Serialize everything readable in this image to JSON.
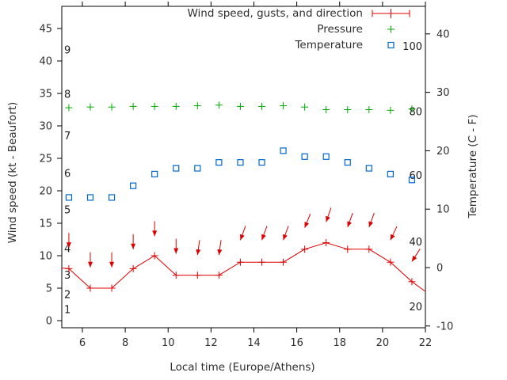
{
  "chart_data": {
    "type": "line",
    "title": "",
    "xlabel": "Local time (Europe/Athens)",
    "ylabel_left": "Wind speed (kt - Beaufort)",
    "ylabel_right": "Temperature (C - F)",
    "grid": false,
    "x_axis": {
      "ticks": [
        6,
        8,
        10,
        12,
        14,
        16,
        18,
        20,
        22
      ],
      "range": [
        5.04,
        22
      ]
    },
    "left_axis": {
      "unit": "kt",
      "ticks": [
        0,
        5,
        10,
        15,
        20,
        25,
        30,
        35,
        40,
        45
      ],
      "range": [
        -1.1,
        48.4
      ]
    },
    "right_axis": {
      "unit": "C",
      "ticks": [
        -10,
        0,
        10,
        20,
        30,
        40
      ],
      "range": [
        -10.3,
        44.7
      ]
    },
    "beaufort_scale_labels": [
      {
        "label": "1",
        "kt": 1.7
      },
      {
        "label": "2",
        "kt": 4.0
      },
      {
        "label": "3",
        "kt": 7.0
      },
      {
        "label": "4",
        "kt": 11.1
      },
      {
        "label": "5",
        "kt": 17.1
      },
      {
        "label": "6",
        "kt": 22.7
      },
      {
        "label": "7",
        "kt": 28.5
      },
      {
        "label": "8",
        "kt": 34.9
      },
      {
        "label": "9",
        "kt": 41.7
      }
    ],
    "fahrenheit_scale_labels": [
      {
        "label": "100",
        "c": 37.9
      },
      {
        "label": "80",
        "c": 26.7
      },
      {
        "label": "60",
        "c": 15.8
      },
      {
        "label": "40",
        "c": 4.4
      },
      {
        "label": "20",
        "c": -6.7
      }
    ],
    "x_hours": [
      5.37,
      6.37,
      7.37,
      8.37,
      9.37,
      10.37,
      11.37,
      12.37,
      13.37,
      14.37,
      15.37,
      16.37,
      17.37,
      18.37,
      19.37,
      20.37,
      21.37
    ],
    "series": [
      {
        "name": "Wind speed, gusts, and direction",
        "marker": "plus-line-with-arrows",
        "color": "#dd0000",
        "axis": "left",
        "wind_speed_kt": [
          8,
          5,
          5,
          8,
          10,
          7,
          7,
          7,
          9,
          9,
          9,
          11,
          12,
          11,
          11,
          9,
          6
        ],
        "gust_kt": [
          11.2,
          8.2,
          8.2,
          11,
          13,
          10.3,
          10.1,
          10.1,
          12.4,
          12.4,
          12.4,
          14.3,
          15.2,
          14.4,
          14.4,
          12.4,
          9.1
        ],
        "arrow_lean_deg_from_down": [
          0,
          0,
          0,
          0,
          0,
          0,
          8,
          8,
          20,
          20,
          20,
          22,
          19,
          20,
          20,
          25,
          33
        ],
        "edge_points": {
          "left": {
            "h": 5.04,
            "kt": 8.1
          },
          "right": {
            "h": 22.0,
            "kt": 4.5
          }
        }
      },
      {
        "name": "Pressure",
        "marker": "plus",
        "color": "#00a800",
        "axis": "left",
        "plotted_kt_axis_values": [
          32.8,
          32.9,
          32.9,
          33.0,
          33.0,
          33.0,
          33.1,
          33.2,
          33.0,
          33.0,
          33.1,
          32.9,
          32.5,
          32.5,
          32.5,
          32.4,
          32.6
        ]
      },
      {
        "name": "Temperature",
        "marker": "open-square",
        "color": "#0066cc",
        "axis": "right",
        "temperature_c": [
          12,
          12,
          12,
          14,
          16,
          17,
          17,
          18,
          18,
          18,
          20,
          19,
          19,
          18,
          17,
          16,
          15
        ]
      }
    ],
    "legend": {
      "position": "top-right-inside",
      "entries": [
        {
          "label": "Wind speed, gusts, and direction",
          "marker": "errorbar",
          "color": "#dd0000"
        },
        {
          "label": "Pressure",
          "marker": "plus",
          "color": "#00a800"
        },
        {
          "label": "Temperature",
          "marker": "open-square",
          "color": "#0066cc"
        }
      ]
    }
  }
}
